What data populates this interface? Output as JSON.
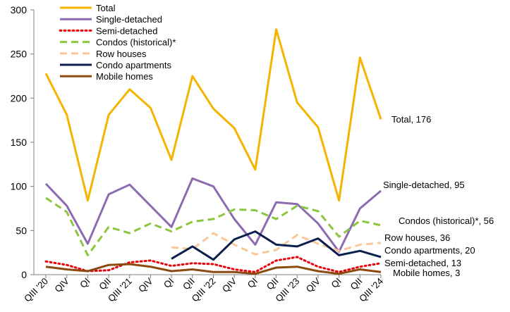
{
  "chart_data": {
    "type": "line",
    "title": "",
    "xlabel": "",
    "ylabel": "",
    "ylim": [
      0,
      300
    ],
    "yticks": [
      0,
      50,
      100,
      150,
      200,
      250,
      300
    ],
    "grid": false,
    "legend_position": "top-left",
    "categories": [
      "QIII '20",
      "QIV",
      "QI",
      "QII",
      "QIII '21",
      "QIV",
      "QI",
      "QII",
      "QIII '22",
      "QIV",
      "QI",
      "QII",
      "QIII '23",
      "QIV",
      "QI",
      "QII",
      "QIII '24"
    ],
    "series": [
      {
        "name": "Total",
        "color": "#f5b400",
        "dash": "solid",
        "width": 3,
        "values": [
          228,
          181,
          84,
          181,
          210,
          189,
          130,
          225,
          188,
          166,
          119,
          278,
          195,
          167,
          84,
          246,
          176
        ],
        "end_label": "Total, 176"
      },
      {
        "name": "Single-detached",
        "color": "#8c6bb1",
        "dash": "solid",
        "width": 3,
        "values": [
          103,
          78,
          35,
          91,
          102,
          78,
          54,
          109,
          100,
          63,
          34,
          82,
          80,
          58,
          26,
          75,
          95
        ],
        "end_label": "Single-detached, 95"
      },
      {
        "name": "Semi-detached",
        "color": "#e8000b",
        "dash": "dotted",
        "width": 3,
        "values": [
          15,
          11,
          4,
          5,
          14,
          16,
          10,
          13,
          12,
          6,
          3,
          16,
          20,
          9,
          3,
          9,
          13
        ],
        "end_label": "Semi-detached, 13"
      },
      {
        "name": "Condos (historical)*",
        "color": "#8cc63f",
        "dash": "dashed",
        "width": 3,
        "values": [
          87,
          71,
          22,
          54,
          47,
          58,
          49,
          60,
          63,
          74,
          73,
          63,
          78,
          72,
          43,
          61,
          56
        ],
        "end_label": "Condos (historical)*, 56"
      },
      {
        "name": "Row houses",
        "color": "#f8c89a",
        "dash": "dashed",
        "width": 3,
        "values": [
          null,
          null,
          null,
          null,
          null,
          null,
          31,
          29,
          47,
          34,
          23,
          28,
          45,
          35,
          27,
          34,
          36
        ],
        "end_label": "Row houses, 36"
      },
      {
        "name": "Condo apartments",
        "color": "#0b1f4d",
        "dash": "solid",
        "width": 3,
        "values": [
          null,
          null,
          null,
          null,
          null,
          null,
          18,
          32,
          17,
          40,
          49,
          34,
          32,
          41,
          22,
          27,
          20
        ],
        "end_label": "Condo apartments, 20"
      },
      {
        "name": "Mobile homes",
        "color": "#8b4a0f",
        "dash": "solid",
        "width": 3,
        "values": [
          9,
          6,
          4,
          11,
          12,
          9,
          4,
          6,
          3,
          3,
          1,
          8,
          9,
          4,
          1,
          6,
          3
        ],
        "end_label": "Mobile homes, 3"
      }
    ]
  }
}
